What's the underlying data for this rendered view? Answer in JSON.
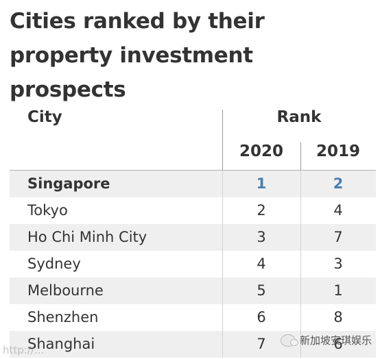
{
  "title_line1": "Cities ranked by their",
  "title_line2": "property investment prospects",
  "header": {
    "city": "City",
    "rank": "Rank",
    "year1": "2020",
    "year2": "2019"
  },
  "rows": [
    {
      "city": "Singapore",
      "rank2020": "1",
      "rank2019": "2"
    },
    {
      "city": "Tokyo",
      "rank2020": "2",
      "rank2019": "4"
    },
    {
      "city": "Ho Chi Minh City",
      "rank2020": "3",
      "rank2019": "7"
    },
    {
      "city": "Sydney",
      "rank2020": "4",
      "rank2019": "3"
    },
    {
      "city": "Melbourne",
      "rank2020": "5",
      "rank2019": "1"
    },
    {
      "city": "Shenzhen",
      "rank2020": "6",
      "rank2019": "8"
    },
    {
      "city": "Shanghai",
      "rank2020": "7",
      "rank2019": "6"
    }
  ],
  "highlight_color": "#4a7fae",
  "watermark": {
    "left": "http://...",
    "right": "新加坡安琪娱乐",
    "icon": "wechat-icon"
  }
}
